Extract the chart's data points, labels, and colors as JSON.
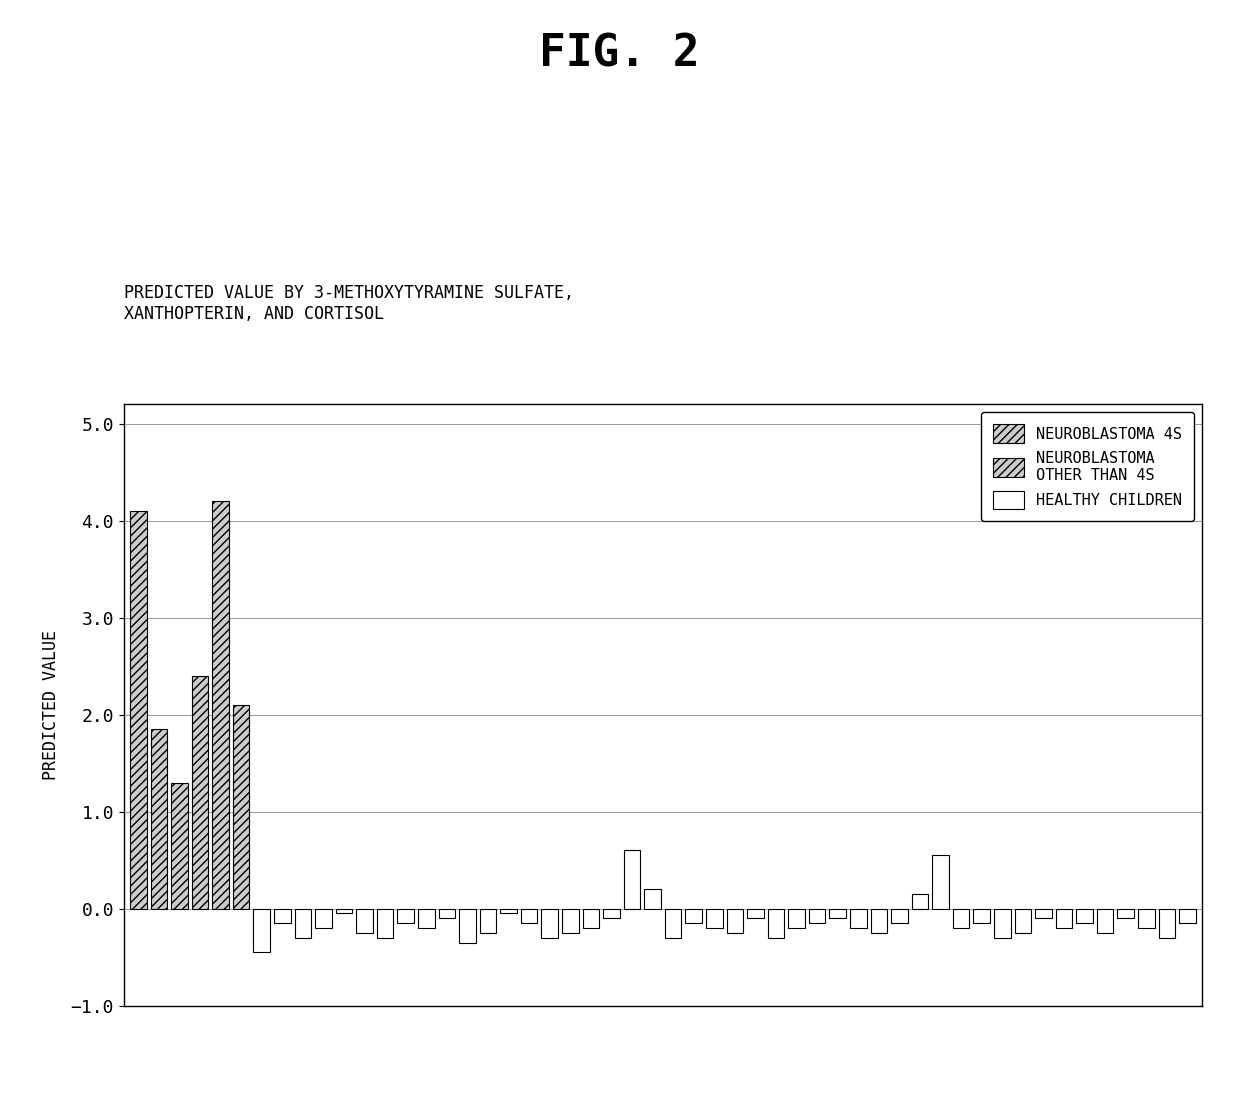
{
  "title": "FIG. 2",
  "subtitle_line1": "PREDICTED VALUE BY 3-METHOXYTYRAMINE SULFATE,",
  "subtitle_line2": "XANTHOPTERIN, AND CORTISOL",
  "ylabel": "PREDICTED VALUE",
  "ylim": [
    -1.0,
    5.2
  ],
  "yticks": [
    -1.0,
    0.0,
    1.0,
    2.0,
    3.0,
    4.0,
    5.0
  ],
  "legend_labels": [
    "NEUROBLASTOMA 4S",
    "NEUROBLASTOMA\nOTHER THAN 4S",
    "HEALTHY CHILDREN"
  ],
  "bar_types": [
    "4s",
    "4s",
    "other",
    "other",
    "other",
    "other",
    "healthy",
    "healthy",
    "healthy",
    "healthy",
    "healthy",
    "healthy",
    "healthy",
    "healthy",
    "healthy",
    "healthy",
    "healthy",
    "healthy",
    "healthy",
    "healthy",
    "healthy",
    "healthy",
    "healthy",
    "healthy",
    "healthy",
    "healthy",
    "healthy",
    "healthy",
    "healthy",
    "healthy",
    "healthy",
    "healthy",
    "healthy",
    "healthy",
    "healthy",
    "healthy",
    "healthy",
    "healthy",
    "healthy",
    "healthy",
    "healthy",
    "healthy",
    "healthy",
    "healthy",
    "healthy",
    "healthy",
    "healthy",
    "healthy",
    "healthy",
    "healthy",
    "healthy",
    "healthy"
  ],
  "bar_values": [
    4.1,
    1.85,
    1.3,
    2.4,
    4.2,
    2.1,
    -0.45,
    -0.15,
    -0.3,
    -0.2,
    -0.05,
    -0.25,
    -0.3,
    -0.15,
    -0.2,
    -0.1,
    -0.35,
    -0.25,
    -0.05,
    -0.15,
    -0.3,
    -0.25,
    -0.2,
    -0.1,
    0.6,
    0.2,
    -0.3,
    -0.15,
    -0.2,
    -0.25,
    -0.1,
    -0.3,
    -0.2,
    -0.15,
    -0.1,
    -0.2,
    -0.25,
    -0.15,
    0.15,
    0.55,
    -0.2,
    -0.15,
    -0.3,
    -0.25,
    -0.1,
    -0.2,
    -0.15,
    -0.25,
    -0.1,
    -0.2,
    -0.3,
    -0.15
  ],
  "background_color": "#ffffff"
}
